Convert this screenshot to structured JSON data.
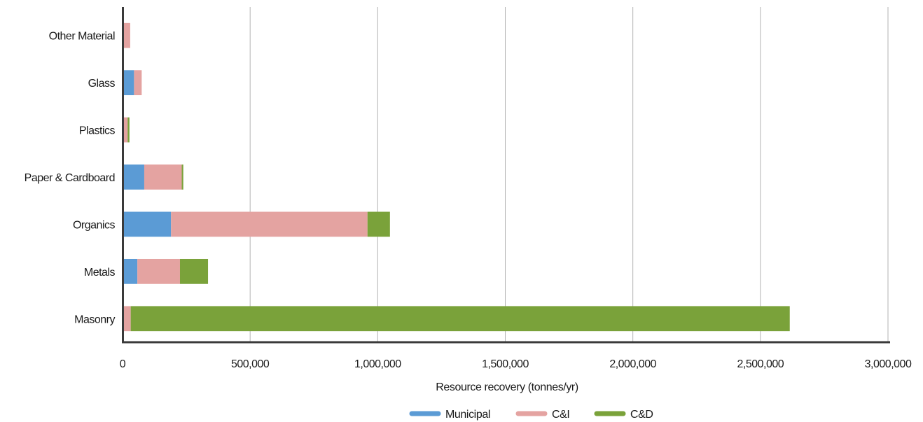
{
  "chart_data": {
    "type": "bar",
    "orientation": "horizontal",
    "stacked": true,
    "title": "",
    "xlabel": "Resource recovery (tonnes/yr)",
    "ylabel": "",
    "xlim": [
      0,
      3000000
    ],
    "x_ticks": [
      0,
      500000,
      1000000,
      1500000,
      2000000,
      2500000,
      3000000
    ],
    "x_tick_labels": [
      "0",
      "500,000",
      "1,000,000",
      "1,500,000",
      "2,000,000",
      "2,500,000",
      "3,000,000"
    ],
    "grid": "vertical",
    "legend_position": "bottom",
    "categories": [
      "Masonry",
      "Metals",
      "Organics",
      "Paper & Cardboard",
      "Plastics",
      "Glass",
      "Other Material"
    ],
    "series": [
      {
        "name": "Municipal",
        "color": "#5b9bd5",
        "values": [
          5000,
          58000,
          190000,
          85000,
          3000,
          45000,
          2000
        ]
      },
      {
        "name": "C&I",
        "color": "#e4a3a1",
        "values": [
          27000,
          167000,
          770000,
          147000,
          17000,
          30000,
          28000
        ]
      },
      {
        "name": "C&D",
        "color": "#7aa23a",
        "values": [
          2583000,
          110000,
          88000,
          6000,
          7000,
          0,
          0
        ]
      }
    ]
  }
}
